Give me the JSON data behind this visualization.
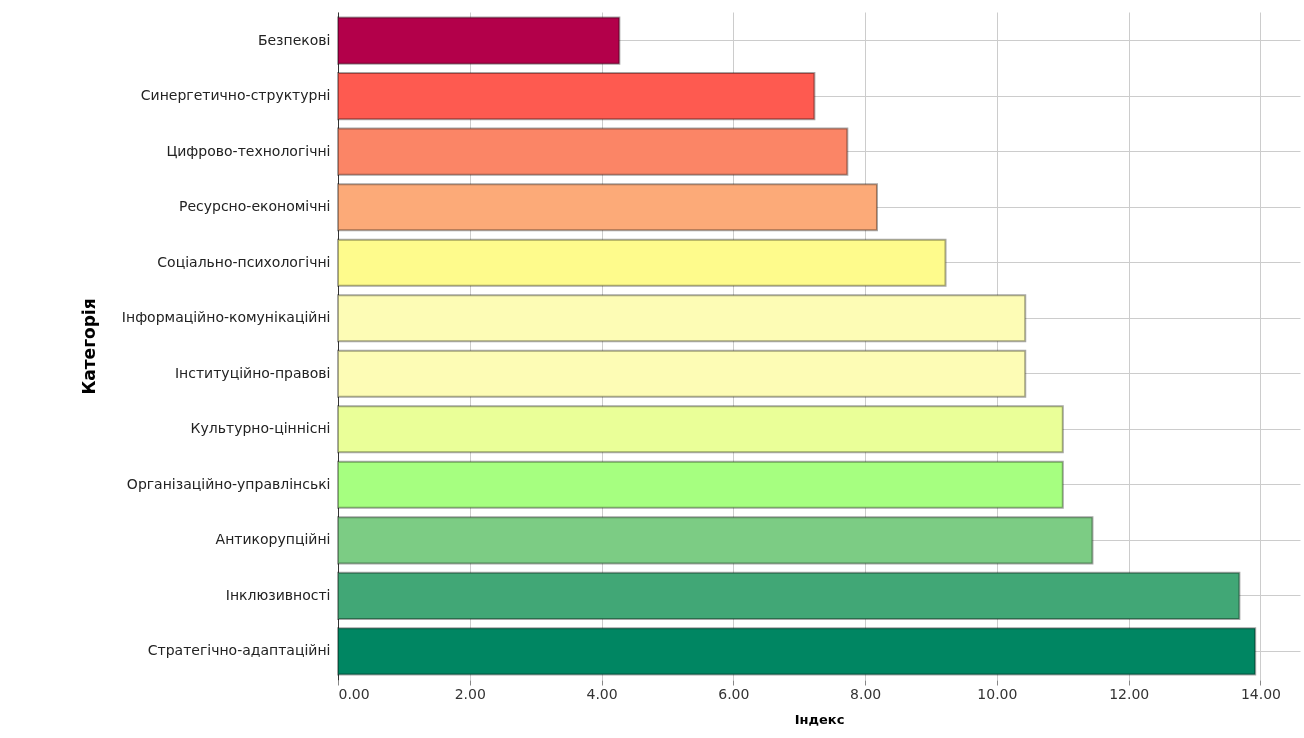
{
  "chart_data": {
    "type": "bar",
    "orientation": "horizontal",
    "xlabel": "Індекс",
    "ylabel": "Категорія",
    "categories": [
      "Безпекові",
      "Синергетично-структурні",
      "Цифрово-технологічні",
      "Ресурсно-економічні",
      "Соціально-психологічні",
      "Інформаційно-комунікаційні",
      "Інституційно-правові",
      "Культурно-ціннісні",
      "Організаційно-управлінські",
      "Антикорупційні",
      "Інклюзивності",
      "Стратегічно-адаптаційні"
    ],
    "values": [
      4.27,
      7.23,
      7.73,
      8.18,
      9.22,
      10.43,
      10.43,
      11.0,
      11.0,
      11.45,
      13.68,
      13.92
    ],
    "colors": [
      "#b3004a",
      "#fe5a50",
      "#fb8566",
      "#fcaa78",
      "#fefb8c",
      "#fdfcb5",
      "#fdfcb5",
      "#eaff98",
      "#a6ff80",
      "#7ccc84",
      "#41a776",
      "#008662"
    ],
    "xlim": [
      0,
      14.6
    ],
    "xticks": [
      {
        "value": 0,
        "label": "0.00"
      },
      {
        "value": 2,
        "label": "2.00"
      },
      {
        "value": 4,
        "label": "4.00"
      },
      {
        "value": 6,
        "label": "6.00"
      },
      {
        "value": 8,
        "label": "8.00"
      },
      {
        "value": 10,
        "label": "10.00"
      },
      {
        "value": 12,
        "label": "12.00"
      },
      {
        "value": 14,
        "label": "14.00"
      }
    ],
    "grid": true
  }
}
